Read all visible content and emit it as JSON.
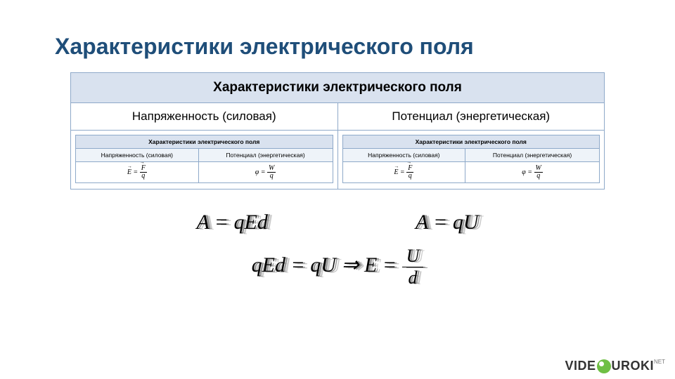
{
  "title": "Характеристики электрического поля",
  "table": {
    "header": "Характеристики электрического поля",
    "col1": "Напряженность (силовая)",
    "col2": "Потенциал (энергетическая)",
    "inner": {
      "header": "Характеристики электрического поля",
      "c1": "Напряженность (силовая)",
      "c2": "Потенциал (энергетическая)",
      "f1_left": "E =",
      "f1_num": "F",
      "f1_den": "q",
      "f2_left": "φ =",
      "f2_num": "W",
      "f2_den": "q"
    }
  },
  "formulas": {
    "a1": "A = qEd",
    "a2": "A = qU",
    "line2_left": "qEd = qU ⇒ E =",
    "line2_num": "U",
    "line2_den": "d"
  },
  "watermark": {
    "pre": "VIDE",
    "post": "UROKI",
    "suffix": "NET"
  },
  "colors": {
    "title": "#1f4e79",
    "table_border": "#8ea9c9",
    "table_header_bg": "#d9e2ef",
    "inner_sub_bg": "#eef3f9",
    "dot": "#6fbf44"
  }
}
